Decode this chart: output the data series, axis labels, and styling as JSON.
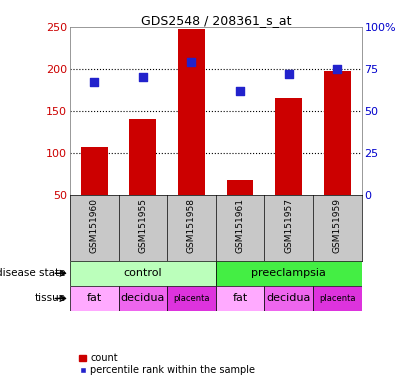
{
  "title": "GDS2548 / 208361_s_at",
  "samples": [
    "GSM151960",
    "GSM151955",
    "GSM151958",
    "GSM151961",
    "GSM151957",
    "GSM151959"
  ],
  "counts": [
    107,
    140,
    248,
    67,
    165,
    197
  ],
  "percentile_ranks": [
    67,
    70,
    79,
    62,
    72,
    75
  ],
  "ylim_left": [
    50,
    250
  ],
  "ylim_right": [
    0,
    100
  ],
  "yticks_left": [
    50,
    100,
    150,
    200,
    250
  ],
  "yticks_right": [
    0,
    25,
    50,
    75,
    100
  ],
  "bar_color": "#cc0000",
  "dot_color": "#2222cc",
  "grid_color": "#000000",
  "disease_groups": [
    {
      "label": "control",
      "start": 0,
      "end": 2
    },
    {
      "label": "preeclampsia",
      "start": 3,
      "end": 5
    }
  ],
  "disease_colors": {
    "control": "#bbffbb",
    "preeclampsia": "#44ee44"
  },
  "tissue": [
    "fat",
    "decidua",
    "placenta",
    "fat",
    "decidua",
    "placenta"
  ],
  "tissue_colors": {
    "fat": "#ffaaff",
    "decidua": "#ee66ee",
    "placenta": "#dd33dd"
  },
  "sample_bg_color": "#c8c8c8",
  "left_axis_color": "#cc0000",
  "right_axis_color": "#0000cc",
  "bar_bottom": 50
}
